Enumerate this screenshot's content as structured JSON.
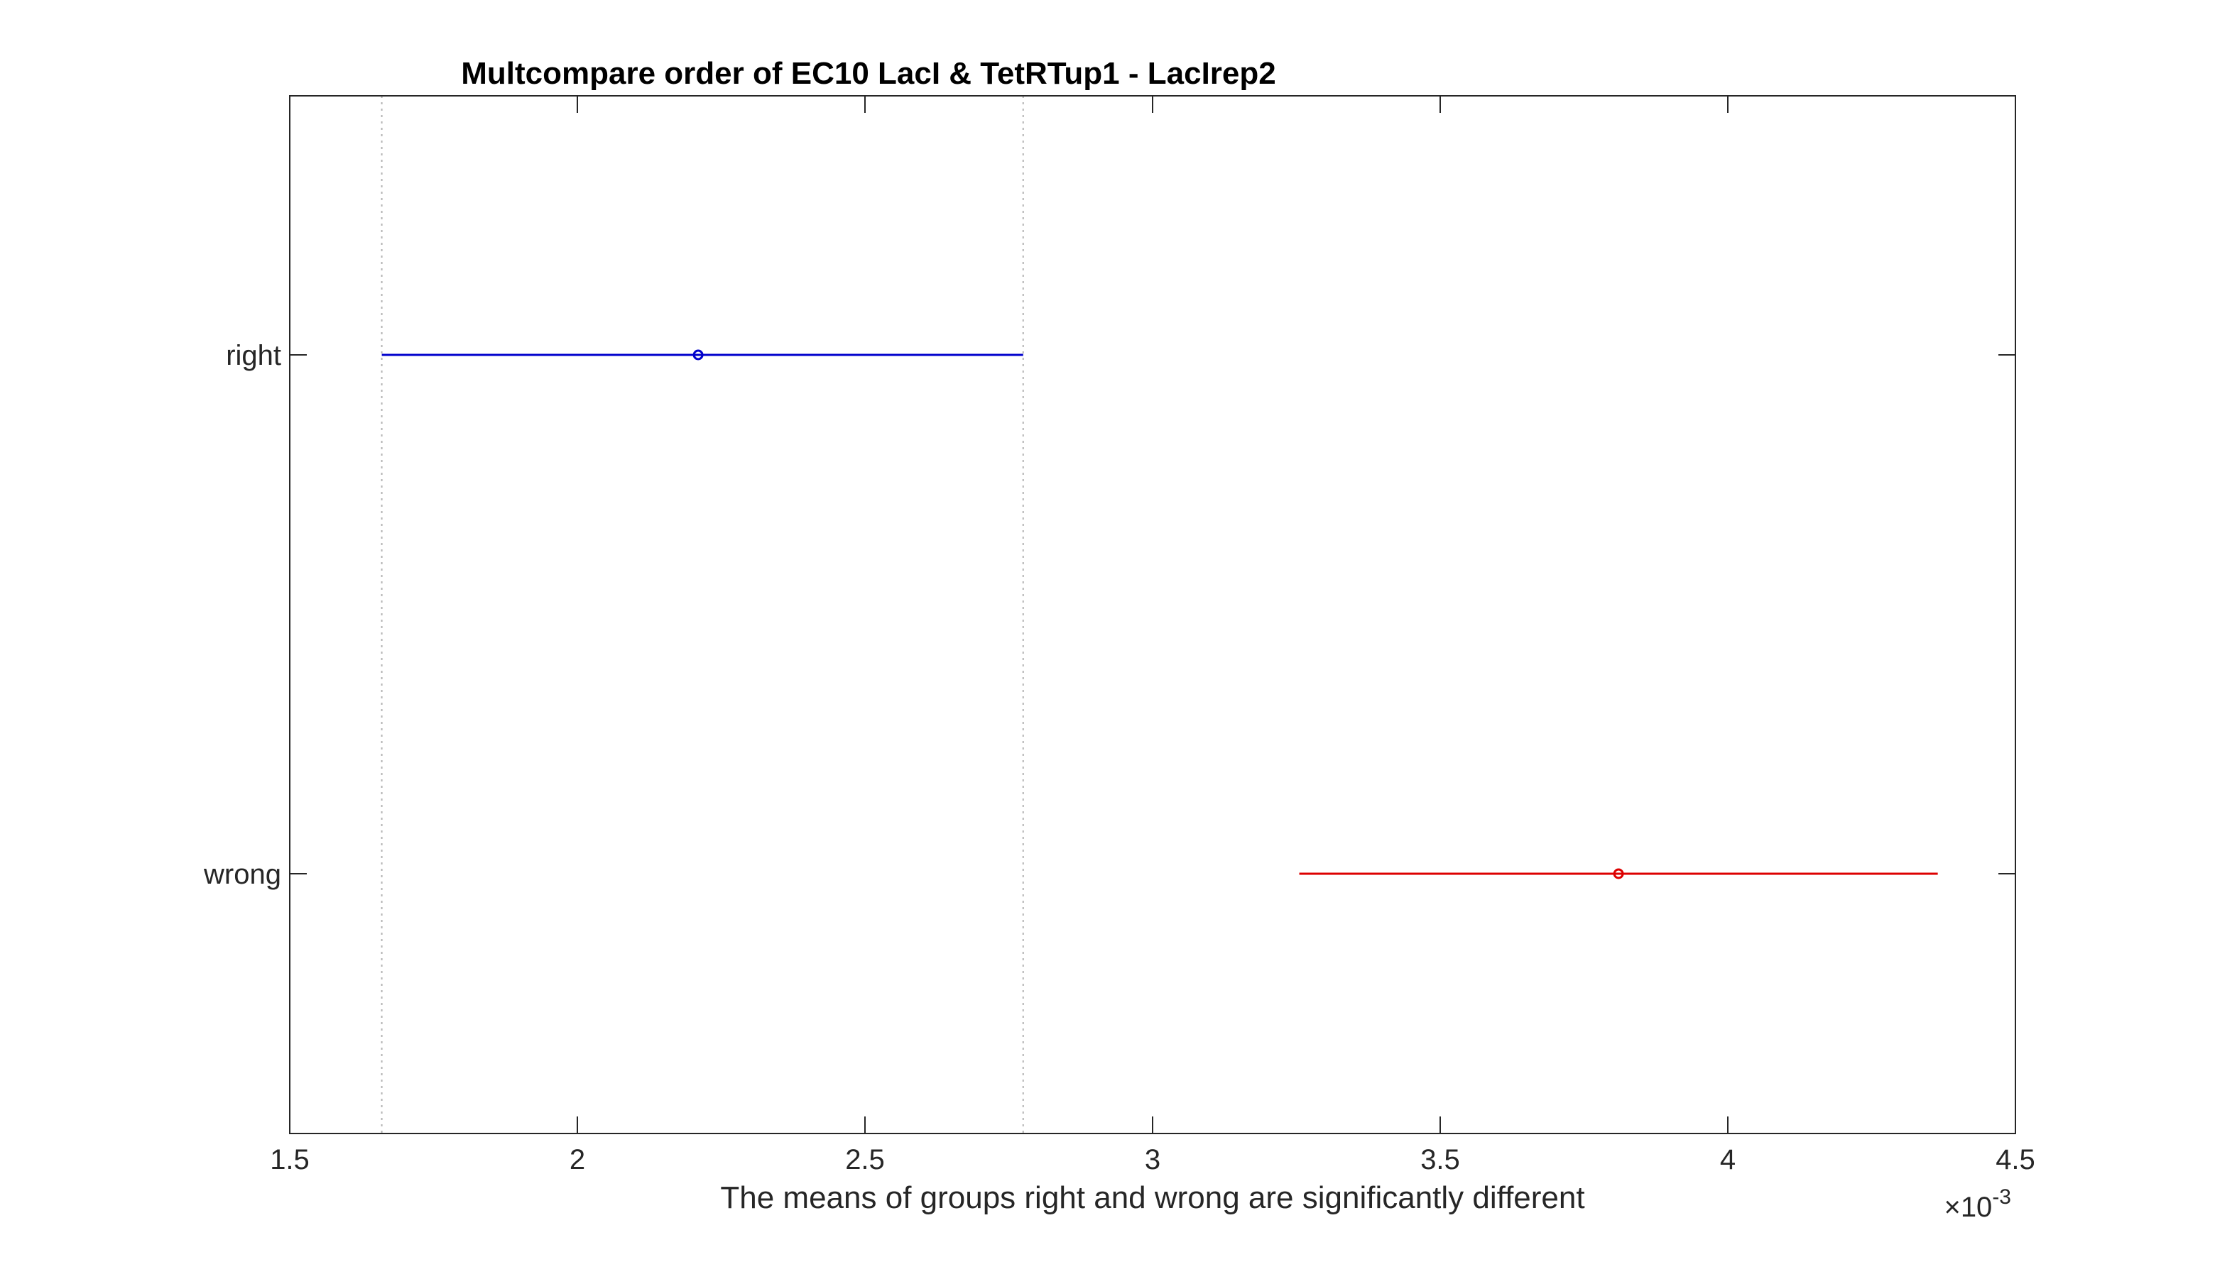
{
  "chart_data": {
    "type": "scatter",
    "title": "Multcompare order of EC10 LacI & TetRTup1 - LacIrep2",
    "xlabel": "The means of groups right and wrong are significantly different",
    "x_multiplier": "×10",
    "x_multiplier_exponent": "-3",
    "xlim": [
      0.0015,
      0.0045
    ],
    "x_ticks": [
      0.0015,
      0.002,
      0.0025,
      0.003,
      0.0035,
      0.004,
      0.0045
    ],
    "x_tick_labels": [
      "1.5",
      "2",
      "2.5",
      "3",
      "3.5",
      "4",
      "4.5"
    ],
    "groups": [
      {
        "name": "right",
        "mean": 0.00221,
        "lower": 0.00166,
        "upper": 0.002775,
        "color": "#0000cc"
      },
      {
        "name": "wrong",
        "mean": 0.00381,
        "lower": 0.003255,
        "upper": 0.004365,
        "color": "#dd0000"
      }
    ],
    "reference_lines": [
      0.00166,
      0.002775
    ],
    "grid": false,
    "box": true
  }
}
